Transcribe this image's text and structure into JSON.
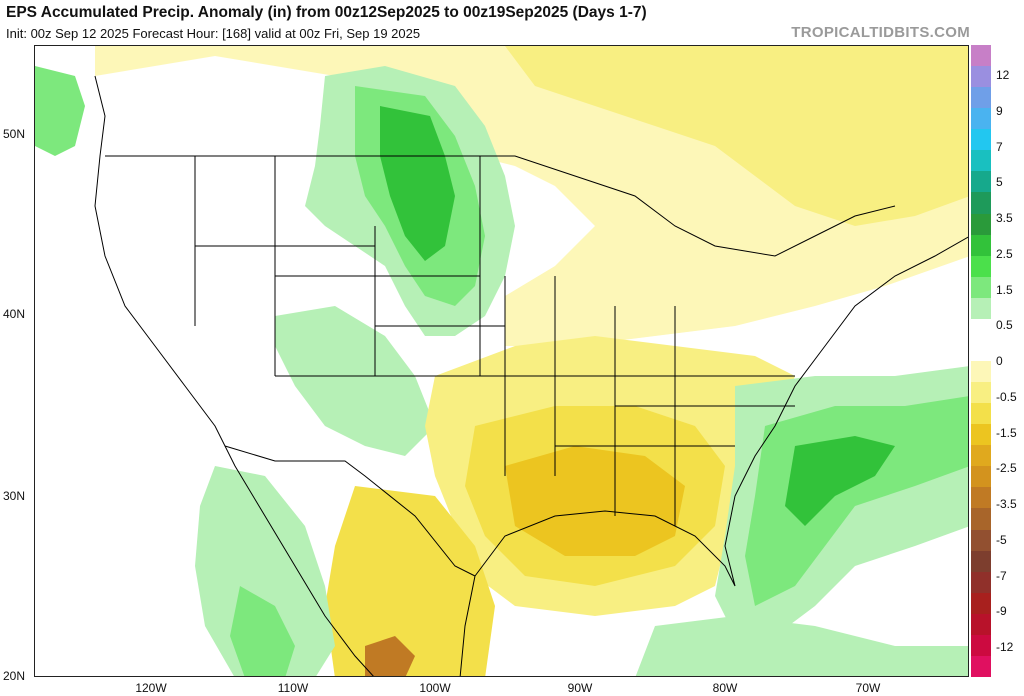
{
  "header": {
    "title": "EPS Accumulated Precip. Anomaly (in) from 00z12Sep2025 to 00z19Sep2025 (Days 1-7)",
    "subtitle": "Init: 00z Sep 12 2025   Forecast Hour: [168]   valid at 00z Fri, Sep 19 2025",
    "brand": "TROPICALTIDBITS.COM"
  },
  "axes": {
    "lat_labels": [
      "50N",
      "40N",
      "30N",
      "20N"
    ],
    "lon_labels": [
      "120W",
      "110W",
      "100W",
      "90W",
      "80W",
      "70W"
    ]
  },
  "colorbar": {
    "units": "in",
    "labels": [
      "12",
      "9",
      "7",
      "5",
      "3.5",
      "2.5",
      "1.5",
      "0.5",
      "0",
      "-0.5",
      "-1.5",
      "-2.5",
      "-3.5",
      "-5",
      "-7",
      "-9",
      "-12"
    ],
    "colors": [
      "#c77fc7",
      "#9a8fe0",
      "#6f9fe8",
      "#4ab3f0",
      "#22c7f0",
      "#19c0c0",
      "#16a98c",
      "#1e9a5a",
      "#2a9a3a",
      "#32c23a",
      "#4be04b",
      "#7de87d",
      "#b6f0b6",
      "#ffffff",
      "#ffffff",
      "#fdf7b8",
      "#f8ef82",
      "#f3e04a",
      "#ecc520",
      "#e0a91e",
      "#d3931e",
      "#c07a24",
      "#a8652a",
      "#925030",
      "#7d3e2e",
      "#90302a",
      "#a8201e",
      "#b8122a",
      "#cc0a40",
      "#e01060"
    ]
  },
  "map_colors": {
    "wet_light": "#b6f0b6",
    "wet_mid": "#7de87d",
    "wet_strong": "#32c23a",
    "dry_light": "#fdf7b8",
    "dry_mid": "#f8ef82",
    "dry_strong": "#f3e04a",
    "dry_deep": "#ecc520",
    "dry_brown": "#c07a24",
    "border": "#000000"
  }
}
